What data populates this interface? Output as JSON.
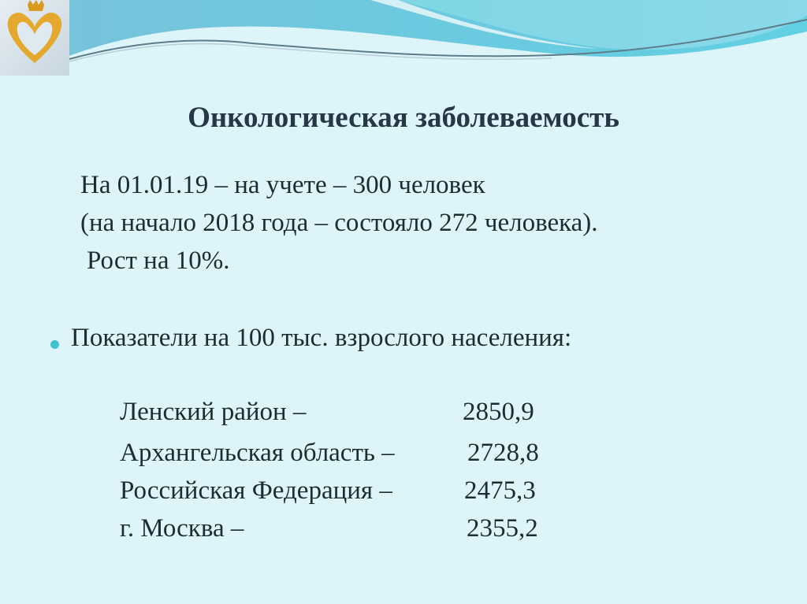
{
  "slide": {
    "title": "Онкологическая заболеваемость",
    "line1": "На 01.01.19 – на учете – 300 человек",
    "line2": "(на начало 2018 года – состояло 272 человека).",
    "line3": "Рост на 10%.",
    "bullet": "Показатели на 100 тыс. взрослого населения:",
    "rows": [
      {
        "label": "Ленский район –",
        "value": "2850,9"
      },
      {
        "label": "Архангельская область –",
        "value": "2728,8"
      },
      {
        "label": "Российская Федерация –",
        "value": "2475,3"
      },
      {
        "label": "г. Москва –",
        "value": "2355,2"
      }
    ]
  },
  "colors": {
    "background": "#ddf5f9",
    "wave": "#6ccfe0",
    "accent": "#3fc1cf",
    "logo": "#e0a42a"
  },
  "icons": {
    "logo": "golden-heart-crown-logo",
    "bullet": "round-bullet"
  }
}
